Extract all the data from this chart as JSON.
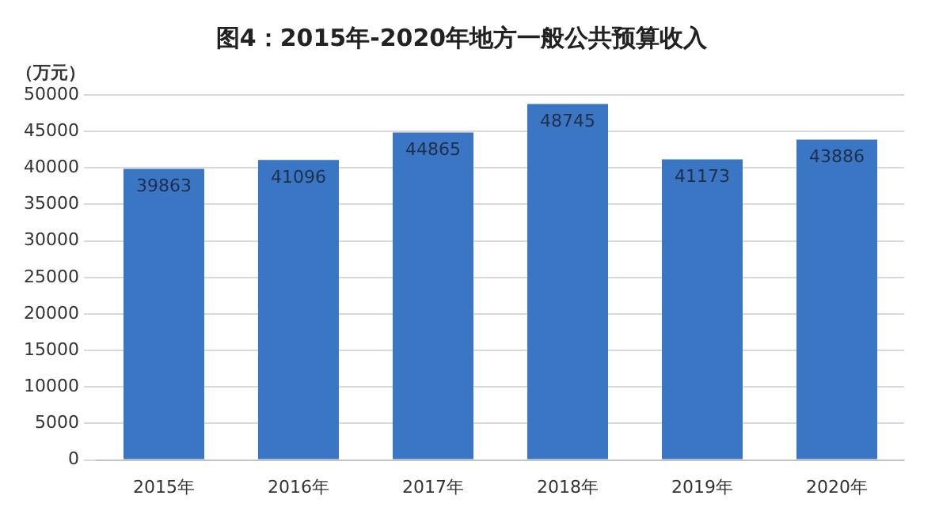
{
  "chart_data": {
    "type": "bar",
    "title": "图4：2015年-2020年地方一般公共预算收入",
    "ylabel": "（万元）",
    "categories": [
      "2015年",
      "2016年",
      "2017年",
      "2018年",
      "2019年",
      "2020年"
    ],
    "values": [
      39863,
      41096,
      44865,
      48745,
      41173,
      43886
    ],
    "color": "#3a76c4",
    "ylim": [
      0,
      50000
    ],
    "yticks": [
      0,
      5000,
      10000,
      15000,
      20000,
      25000,
      30000,
      35000,
      40000,
      45000,
      50000
    ],
    "grid": "y",
    "data_labels": true
  }
}
